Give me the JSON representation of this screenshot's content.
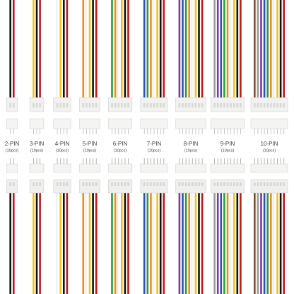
{
  "columns": [
    {
      "label": "2-PIN",
      "quantity": "(10pcs)"
    },
    {
      "label": "3-PIN",
      "quantity": "(10pcs)"
    },
    {
      "label": "4-PIN",
      "quantity": "(10pcs)"
    },
    {
      "label": "5-PIN",
      "quantity": "(10pcs)"
    },
    {
      "label": "6-PIN",
      "quantity": "(10pcs)"
    },
    {
      "label": "7-PIN",
      "quantity": "(10pcs)"
    },
    {
      "label": "8-PIN",
      "quantity": "(10pcs)"
    },
    {
      "label": "9-PIN",
      "quantity": "(10pcs)"
    },
    {
      "label": "10-PIN",
      "quantity": "(10pcs)"
    }
  ]
}
